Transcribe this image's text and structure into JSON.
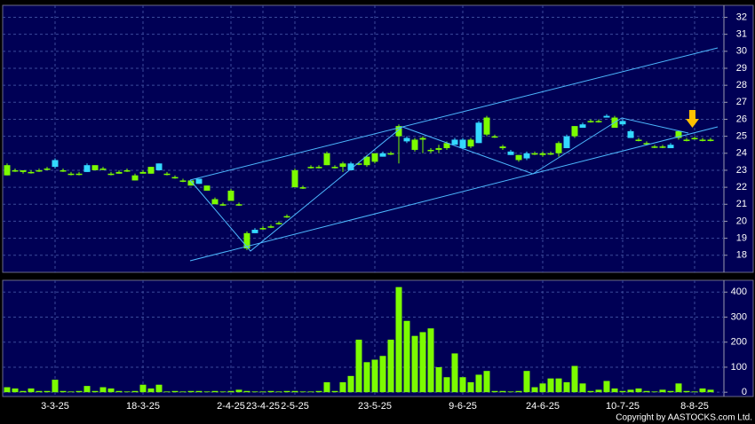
{
  "chart_data": [
    {
      "type": "candlestick",
      "categories": [
        null,
        null,
        null,
        null,
        null,
        null,
        "3-3-25",
        null,
        null,
        null,
        null,
        null,
        null,
        null,
        null,
        null,
        null,
        "18-3-25",
        null,
        null,
        null,
        null,
        null,
        null,
        null,
        null,
        null,
        null,
        "2-4-25",
        null,
        null,
        null,
        "23-4-25",
        null,
        null,
        null,
        "2-5-25",
        null,
        null,
        null,
        null,
        null,
        null,
        null,
        null,
        null,
        "23-5-25",
        null,
        null,
        null,
        null,
        null,
        null,
        null,
        null,
        null,
        null,
        "9-6-25",
        null,
        null,
        null,
        null,
        null,
        null,
        null,
        null,
        null,
        "24-6-25",
        null,
        null,
        null,
        null,
        null,
        null,
        null,
        null,
        null,
        "10-7-25",
        null,
        null,
        null,
        null,
        null,
        null,
        null,
        null,
        "8-8-25",
        null,
        null
      ],
      "open": [
        22.7,
        23.0,
        22.9,
        22.9,
        23.0,
        23.1,
        23.6,
        23.0,
        22.8,
        22.8,
        23.3,
        23.0,
        23.1,
        22.8,
        22.8,
        23.0,
        22.4,
        22.8,
        22.8,
        23.4,
        22.8,
        22.6,
        22.4,
        22.1,
        22.5,
        21.8,
        21.0,
        21.0,
        21.2,
        21.0,
        18.4,
        19.5,
        19.6,
        19.7,
        19.9,
        20.3,
        22.0,
        22.0,
        23.2,
        23.2,
        23.3,
        23.2,
        23.2,
        23.4,
        23.4,
        23.3,
        23.5,
        24.0,
        24.0,
        25.0,
        24.9,
        24.2,
        24.8,
        24.2,
        24.2,
        24.3,
        24.8,
        24.8,
        24.4,
        25.8,
        25.1,
        25.0,
        24.3,
        24.1,
        23.6,
        24.0,
        24.0,
        23.9,
        24.0,
        24.0,
        25.0,
        25.0,
        25.7,
        25.9,
        25.9,
        26.2,
        25.5,
        25.9,
        25.3,
        24.8,
        24.6,
        24.4,
        24.4,
        24.5,
        24.9,
        24.8,
        24.9,
        24.8,
        24.8
      ],
      "high": [
        23.4,
        23.1,
        23.0,
        23.0,
        23.1,
        23.2,
        23.7,
        23.1,
        22.9,
        22.9,
        23.4,
        23.3,
        23.2,
        22.9,
        23.0,
        23.1,
        22.8,
        23.0,
        23.2,
        23.4,
        22.9,
        22.7,
        22.5,
        22.4,
        22.5,
        22.1,
        21.4,
        21.1,
        21.9,
        21.1,
        19.4,
        19.6,
        19.7,
        19.8,
        20.0,
        20.4,
        23.1,
        22.1,
        23.3,
        23.3,
        24.1,
        23.3,
        23.5,
        23.5,
        23.5,
        23.9,
        24.0,
        24.1,
        24.1,
        25.7,
        25.0,
        24.9,
        25.0,
        24.3,
        24.5,
        24.7,
        24.9,
        24.9,
        24.9,
        25.9,
        26.2,
        25.1,
        24.5,
        24.2,
        23.9,
        24.1,
        24.1,
        24.1,
        24.1,
        24.7,
        25.1,
        25.6,
        25.8,
        26.0,
        26.0,
        26.3,
        26.2,
        26.0,
        25.4,
        24.9,
        24.7,
        24.5,
        24.5,
        24.6,
        25.3,
        24.9,
        25.0,
        24.9,
        24.9
      ],
      "low": [
        22.7,
        22.9,
        22.8,
        22.8,
        22.9,
        23.0,
        23.1,
        22.9,
        22.7,
        22.7,
        22.9,
        23.0,
        23.0,
        22.7,
        22.8,
        22.9,
        22.4,
        22.8,
        22.8,
        23.0,
        22.7,
        22.5,
        22.3,
        22.1,
        22.2,
        21.8,
        21.0,
        20.9,
        21.2,
        20.9,
        18.3,
        19.3,
        19.5,
        19.6,
        19.8,
        20.2,
        22.0,
        21.9,
        23.1,
        23.1,
        23.3,
        23.1,
        22.9,
        23.0,
        23.3,
        23.2,
        23.4,
        23.8,
        23.9,
        23.4,
        24.6,
        24.1,
        24.0,
        24.0,
        24.0,
        24.2,
        24.5,
        24.3,
        24.3,
        24.6,
        25.0,
        24.9,
        24.2,
        23.9,
        23.5,
        23.6,
        23.9,
        23.8,
        23.9,
        23.8,
        24.3,
        24.9,
        25.5,
        25.8,
        25.8,
        26.1,
        25.5,
        25.6,
        24.9,
        24.7,
        24.5,
        24.3,
        24.3,
        24.3,
        24.8,
        24.7,
        24.8,
        24.7,
        24.7
      ],
      "close": [
        23.3,
        23.0,
        23.0,
        22.9,
        23.0,
        23.1,
        23.2,
        23.0,
        22.8,
        22.8,
        22.9,
        23.3,
        23.1,
        22.8,
        22.9,
        23.0,
        22.7,
        22.9,
        23.2,
        23.0,
        22.8,
        22.6,
        22.4,
        22.4,
        22.2,
        22.1,
        21.3,
        21.0,
        21.8,
        21.0,
        19.3,
        19.3,
        19.6,
        19.7,
        19.9,
        20.3,
        23.0,
        22.0,
        23.2,
        23.2,
        24.0,
        23.2,
        23.4,
        23.0,
        23.4,
        23.8,
        24.0,
        23.8,
        24.0,
        25.6,
        24.7,
        24.8,
        24.9,
        24.2,
        24.3,
        24.6,
        24.5,
        24.3,
        24.8,
        24.6,
        26.1,
        25.0,
        24.4,
        23.9,
        23.9,
        23.7,
        24.0,
        24.0,
        24.0,
        24.6,
        24.3,
        25.6,
        25.5,
        25.9,
        25.9,
        26.1,
        26.1,
        25.7,
        24.9,
        24.8,
        24.6,
        24.4,
        24.4,
        24.3,
        25.3,
        24.8,
        24.9,
        24.8,
        24.8
      ],
      "up_color": "#7cfc00",
      "down_color": "#33d9ff",
      "ylim": [
        17.1,
        32.6
      ],
      "yticks": [
        18,
        19,
        20,
        21,
        22,
        23,
        24,
        25,
        26,
        27,
        28,
        29,
        30,
        31,
        32
      ],
      "grid": true
    },
    {
      "type": "bar",
      "values": [
        20,
        15,
        5,
        15,
        5,
        5,
        50,
        5,
        3,
        5,
        25,
        5,
        20,
        15,
        5,
        3,
        5,
        30,
        15,
        30,
        3,
        5,
        3,
        5,
        5,
        3,
        5,
        3,
        5,
        10,
        5,
        3,
        3,
        5,
        3,
        5,
        5,
        3,
        3,
        5,
        40,
        5,
        40,
        65,
        210,
        120,
        130,
        145,
        210,
        420,
        285,
        225,
        240,
        255,
        100,
        60,
        155,
        60,
        40,
        70,
        85,
        5,
        5,
        3,
        5,
        85,
        20,
        35,
        55,
        55,
        40,
        105,
        35,
        5,
        10,
        45,
        15,
        5,
        10,
        15,
        5,
        3,
        10,
        5,
        35,
        5,
        3,
        15,
        10
      ],
      "color": "#7cfc00",
      "ylim": [
        -10,
        440
      ],
      "yticks": [
        0,
        100,
        200,
        300,
        400
      ],
      "grid": true
    },
    {
      "copyright": "Copyright by AASTOCKS.com Ltd."
    }
  ]
}
